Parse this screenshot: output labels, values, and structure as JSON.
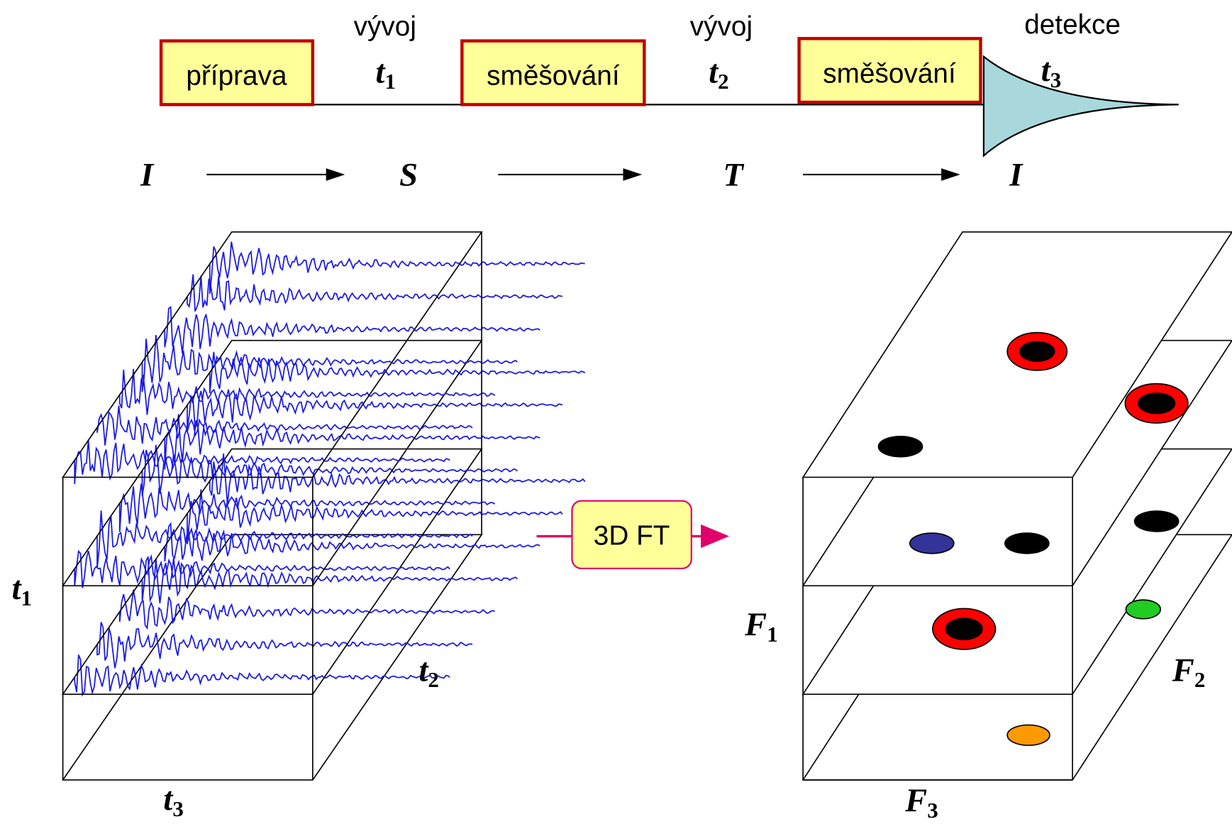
{
  "sequence": {
    "blocks": [
      {
        "label": "příprava"
      },
      {
        "label": "směšování"
      },
      {
        "label": "směšování"
      }
    ],
    "periods": [
      {
        "label": "vývoj",
        "symbol": "t",
        "sub": "1"
      },
      {
        "label": "vývoj",
        "symbol": "t",
        "sub": "2"
      },
      {
        "label": "detekce",
        "symbol": "t",
        "sub": "3"
      }
    ],
    "states": [
      "I",
      "S",
      "T",
      "I"
    ]
  },
  "transform": "3D FT",
  "time_cube": {
    "axes": [
      {
        "symbol": "t",
        "sub": "1"
      },
      {
        "symbol": "t",
        "sub": "2"
      },
      {
        "symbol": "t",
        "sub": "3"
      }
    ]
  },
  "freq_cube": {
    "axes": [
      {
        "symbol": "F",
        "sub": "1"
      },
      {
        "symbol": "F",
        "sub": "2"
      },
      {
        "symbol": "F",
        "sub": "3"
      }
    ]
  }
}
